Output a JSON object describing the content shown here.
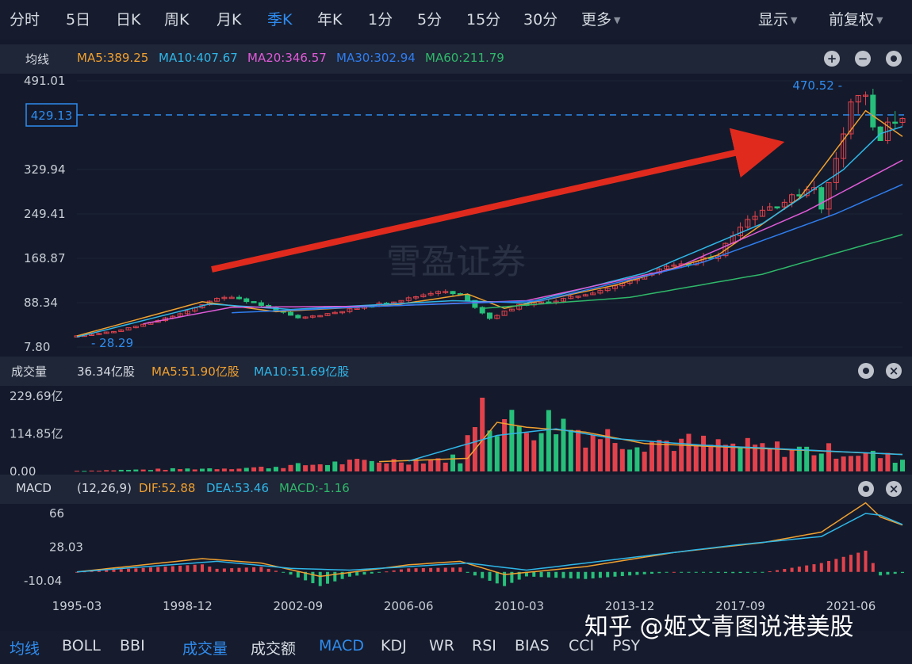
{
  "top_tabs": [
    "分时",
    "5日",
    "日K",
    "周K",
    "月K",
    "季K",
    "年K",
    "1分",
    "5分",
    "15分",
    "30分",
    "更多"
  ],
  "top_right": [
    "显示",
    "前复权"
  ],
  "active_tab": "季K",
  "ma_header": {
    "label": "均线",
    "ma5": "MA5:389.25",
    "ma10": "MA10:407.67",
    "ma20": "MA20:346.57",
    "ma30": "MA30:302.94",
    "ma60": "MA60:211.79"
  },
  "vol_header": {
    "label": "成交量",
    "value": "36.34亿股",
    "ma5": "MA5:51.90亿股",
    "ma10": "MA10:51.69亿股"
  },
  "macd_header": {
    "label": "MACD",
    "params": "(12,26,9)",
    "dif": "DIF:52.88",
    "dea": "DEA:53.46",
    "macd": "MACD:-1.16"
  },
  "bottom_tabs": [
    "均线",
    "BOLL",
    "BBI",
    "成交量",
    "成交额",
    "MACD",
    "KDJ",
    "WR",
    "RSI",
    "BIAS",
    "CCI",
    "PSY"
  ],
  "bottom_active": [
    "均线",
    "成交量",
    "MACD"
  ],
  "watermark_center": "雪盈证券",
  "watermark_corner": "知乎 @姬文青图说港美股",
  "colors": {
    "background": "#141a2b",
    "up": "#e3424c",
    "down": "#26c07a",
    "ma5": "#f0a030",
    "ma10": "#2fb6e8",
    "ma20": "#e05ad8",
    "ma30": "#2f7df0",
    "ma60": "#2fb86a",
    "accent": "#2f8cf0",
    "arrow": "#e02a1e"
  },
  "chart_data": [
    {
      "type": "candlestick",
      "y_ticks": [
        "491.01",
        "329.94",
        "249.41",
        "168.87",
        "88.34",
        "7.80"
      ],
      "ylim": [
        7.8,
        491.01
      ],
      "x_ticks": [
        "1995-03",
        "1998-12",
        "2002-09",
        "2006-06",
        "2010-03",
        "2013-12",
        "2017-09",
        "2021-06"
      ],
      "max_label": "470.52",
      "min_label": "28.29",
      "current_price": "429.13",
      "current_price_value": 429.13,
      "close_path": [
        [
          "1995-03",
          28
        ],
        [
          "1996-06",
          36
        ],
        [
          "1997-09",
          52
        ],
        [
          "1998-12",
          72
        ],
        [
          "1999-09",
          92
        ],
        [
          "2000-06",
          100
        ],
        [
          "2001-06",
          84
        ],
        [
          "2002-09",
          60
        ],
        [
          "2003-06",
          66
        ],
        [
          "2004-06",
          76
        ],
        [
          "2005-06",
          86
        ],
        [
          "2006-06",
          96
        ],
        [
          "2007-06",
          110
        ],
        [
          "2008-03",
          102
        ],
        [
          "2009-03",
          60
        ],
        [
          "2009-12",
          78
        ],
        [
          "2010-03",
          84
        ],
        [
          "2011-06",
          92
        ],
        [
          "2012-06",
          104
        ],
        [
          "2013-06",
          118
        ],
        [
          "2013-12",
          128
        ],
        [
          "2014-12",
          150
        ],
        [
          "2015-12",
          158
        ],
        [
          "2016-12",
          176
        ],
        [
          "2017-09",
          230
        ],
        [
          "2018-06",
          258
        ],
        [
          "2019-03",
          272
        ],
        [
          "2020-03",
          302
        ],
        [
          "2020-06",
          256
        ],
        [
          "2021-03",
          402
        ],
        [
          "2021-06",
          455
        ],
        [
          "2021-12",
          468
        ],
        [
          "2022-03",
          402
        ],
        [
          "2022-06",
          382
        ],
        [
          "2022-09",
          410
        ],
        [
          "2023-03",
          429
        ]
      ],
      "ma_lines": {
        "MA5": [
          [
            "1995-03",
            28
          ],
          [
            "1999-06",
            90
          ],
          [
            "2001-12",
            72
          ],
          [
            "2005-12",
            84
          ],
          [
            "2008-06",
            104
          ],
          [
            "2009-09",
            78
          ],
          [
            "2013-06",
            120
          ],
          [
            "2016-12",
            175
          ],
          [
            "2019-09",
            278
          ],
          [
            "2021-12",
            437
          ],
          [
            "2023-03",
            390
          ]
        ],
        "MA10": [
          [
            "1995-03",
            26
          ],
          [
            "1999-09",
            86
          ],
          [
            "2002-06",
            76
          ],
          [
            "2007-12",
            92
          ],
          [
            "2010-06",
            88
          ],
          [
            "2014-06",
            142
          ],
          [
            "2018-06",
            232
          ],
          [
            "2021-03",
            330
          ],
          [
            "2022-06",
            395
          ],
          [
            "2023-03",
            408
          ]
        ],
        "MA20": [
          [
            "1997-06",
            50
          ],
          [
            "2000-06",
            80
          ],
          [
            "2005-06",
            82
          ],
          [
            "2010-06",
            92
          ],
          [
            "2015-06",
            150
          ],
          [
            "2019-12",
            255
          ],
          [
            "2023-03",
            347
          ]
        ],
        "MA30": [
          [
            "2000-06",
            70
          ],
          [
            "2005-06",
            82
          ],
          [
            "2010-12",
            92
          ],
          [
            "2016-06",
            162
          ],
          [
            "2020-12",
            250
          ],
          [
            "2023-03",
            303
          ]
        ],
        "MA60": [
          [
            "2008-12",
            78
          ],
          [
            "2013-12",
            98
          ],
          [
            "2018-06",
            140
          ],
          [
            "2021-06",
            186
          ],
          [
            "2023-03",
            212
          ]
        ]
      },
      "annotation": "red arrow indicating long-term uptrend"
    },
    {
      "type": "bar",
      "name": "成交量",
      "y_ticks": [
        "229.69亿",
        "114.85亿",
        "0.00"
      ],
      "ylim": [
        0,
        229.69
      ],
      "unit": "亿股",
      "segments": [
        [
          "1995-03",
          2
        ],
        [
          "2001-06",
          12
        ],
        [
          "2004-06",
          28
        ],
        [
          "2008-03",
          40
        ],
        [
          "2008-06",
          95
        ],
        [
          "2009-03",
          170
        ],
        [
          "2010-03",
          140
        ],
        [
          "2011-06",
          155
        ],
        [
          "2012-06",
          120
        ],
        [
          "2013-12",
          100
        ],
        [
          "2017-09",
          75
        ],
        [
          "2021-06",
          60
        ],
        [
          "2023-03",
          36.34
        ]
      ],
      "ma5_path": [
        [
          "2005-06",
          30
        ],
        [
          "2008-06",
          40
        ],
        [
          "2009-06",
          150
        ],
        [
          "2010-06",
          135
        ],
        [
          "2012-06",
          120
        ],
        [
          "2014-06",
          85
        ],
        [
          "2023-03",
          51.9
        ]
      ],
      "ma10_path": [
        [
          "2006-06",
          32
        ],
        [
          "2009-06",
          110
        ],
        [
          "2011-06",
          130
        ],
        [
          "2013-06",
          100
        ],
        [
          "2016-06",
          80
        ],
        [
          "2023-03",
          51.69
        ]
      ]
    },
    {
      "type": "bar+line",
      "name": "MACD",
      "y_ticks": [
        "66",
        "28.03",
        "-10.04"
      ],
      "ylim": [
        -10.04,
        66
      ],
      "dif_path": [
        [
          "1995-03",
          0
        ],
        [
          "1999-06",
          15
        ],
        [
          "2001-06",
          10
        ],
        [
          "2003-06",
          -5
        ],
        [
          "2006-06",
          8
        ],
        [
          "2008-03",
          12
        ],
        [
          "2009-09",
          -3
        ],
        [
          "2012-06",
          6
        ],
        [
          "2015-06",
          22
        ],
        [
          "2018-06",
          33
        ],
        [
          "2020-06",
          45
        ],
        [
          "2021-12",
          78
        ],
        [
          "2022-06",
          62
        ],
        [
          "2023-03",
          52.88
        ]
      ],
      "dea_path": [
        [
          "1995-03",
          0
        ],
        [
          "1999-12",
          12
        ],
        [
          "2002-06",
          4
        ],
        [
          "2004-06",
          2
        ],
        [
          "2008-06",
          10
        ],
        [
          "2010-06",
          2
        ],
        [
          "2013-06",
          14
        ],
        [
          "2017-06",
          30
        ],
        [
          "2020-06",
          40
        ],
        [
          "2021-12",
          66
        ],
        [
          "2022-06",
          64
        ],
        [
          "2023-03",
          53.46
        ]
      ],
      "hist_peak": 38,
      "hist_last": -1.16
    }
  ]
}
